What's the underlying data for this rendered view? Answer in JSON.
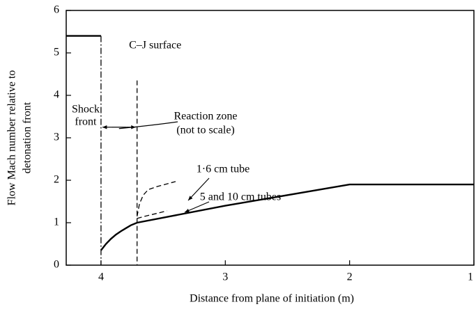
{
  "chart_data": {
    "type": "line",
    "xlabel": "Distance from plane of initiation (m)",
    "ylabel": [
      "Flow Mach number relative to",
      "detonation front"
    ],
    "xlim": [
      4.28,
      1
    ],
    "xticks": [
      4,
      3,
      2,
      1
    ],
    "ylim": [
      0,
      6
    ],
    "yticks": [
      0,
      1,
      2,
      3,
      4,
      5,
      6
    ],
    "grid": false,
    "series": [
      {
        "color": "#000000",
        "style": "solid",
        "x": [
          4.28,
          4
        ],
        "values": [
          5.4,
          5.4
        ]
      },
      {
        "color": "#000000",
        "style": "dashdot",
        "x": [
          4,
          4
        ],
        "values": [
          5.4,
          0
        ]
      },
      {
        "color": "#000000",
        "style": "dashed",
        "x": [
          3.71,
          3.71
        ],
        "values": [
          4.35,
          0
        ]
      },
      {
        "color": "#000000",
        "style": "solid",
        "x": [
          4,
          3.96,
          3.92,
          3.88,
          3.84,
          3.8,
          3.76,
          3.71,
          3,
          2,
          1
        ],
        "values": [
          0.35,
          0.5,
          0.62,
          0.72,
          0.8,
          0.87,
          0.94,
          1.0,
          1.4,
          1.9,
          1.9
        ]
      },
      {
        "color": "#000000",
        "style": "dashed",
        "x": [
          3.71,
          3.69,
          3.66,
          3.62,
          3.55,
          3.4
        ],
        "values": [
          1.15,
          1.45,
          1.65,
          1.78,
          1.85,
          1.97
        ]
      },
      {
        "color": "#000000",
        "style": "dashed",
        "x": [
          3.71,
          3.65,
          3.55,
          3.47
        ],
        "values": [
          1.1,
          1.15,
          1.22,
          1.28
        ]
      }
    ],
    "annotations": [
      "Shock",
      "front",
      "C–J surface",
      "Reaction zone",
      "(not to scale)",
      "1·6 cm tube",
      "5 and 10 cm tubes"
    ]
  }
}
